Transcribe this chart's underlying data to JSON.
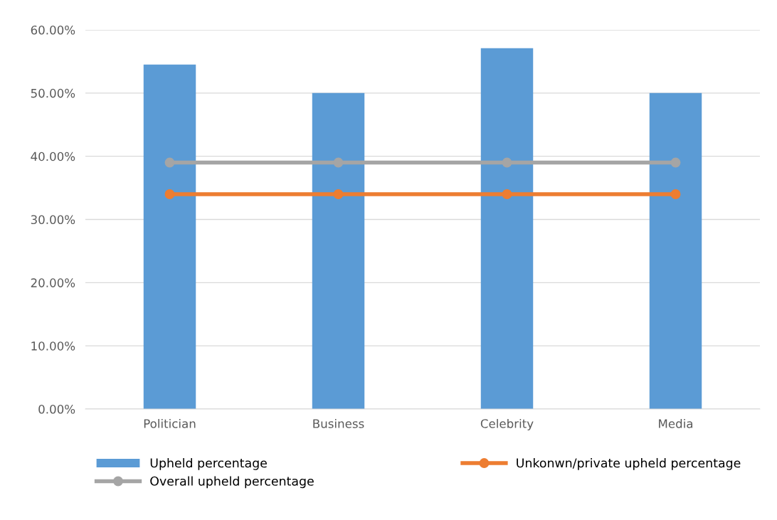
{
  "chart_data": {
    "type": "bar",
    "categories": [
      "Politician",
      "Business",
      "Celebrity",
      "Media"
    ],
    "series": [
      {
        "name": "Upheld percentage",
        "color": "#5b9bd5",
        "values": [
          54.5,
          50.0,
          57.1,
          50.0
        ]
      },
      {
        "name": "Unkonwn/private upheld percentage",
        "type": "line",
        "color": "#ed7d31",
        "marker": "circle",
        "values": [
          34.0,
          34.0,
          34.0,
          34.0
        ]
      },
      {
        "name": "Overall upheld percentage",
        "type": "line",
        "color": "#a5a5a5",
        "marker": "circle",
        "values": [
          39.0,
          39.0,
          39.0,
          39.0
        ]
      }
    ],
    "ylim": [
      0,
      60
    ],
    "yticks": [
      {
        "value": 0,
        "label": "0.00%"
      },
      {
        "value": 10,
        "label": "10.00%"
      },
      {
        "value": 20,
        "label": "20.00%"
      },
      {
        "value": 30,
        "label": "30.00%"
      },
      {
        "value": 40,
        "label": "40.00%"
      },
      {
        "value": 50,
        "label": "50.00%"
      },
      {
        "value": 60,
        "label": "60.00%"
      }
    ],
    "grid": "y",
    "legend": "bottom"
  }
}
